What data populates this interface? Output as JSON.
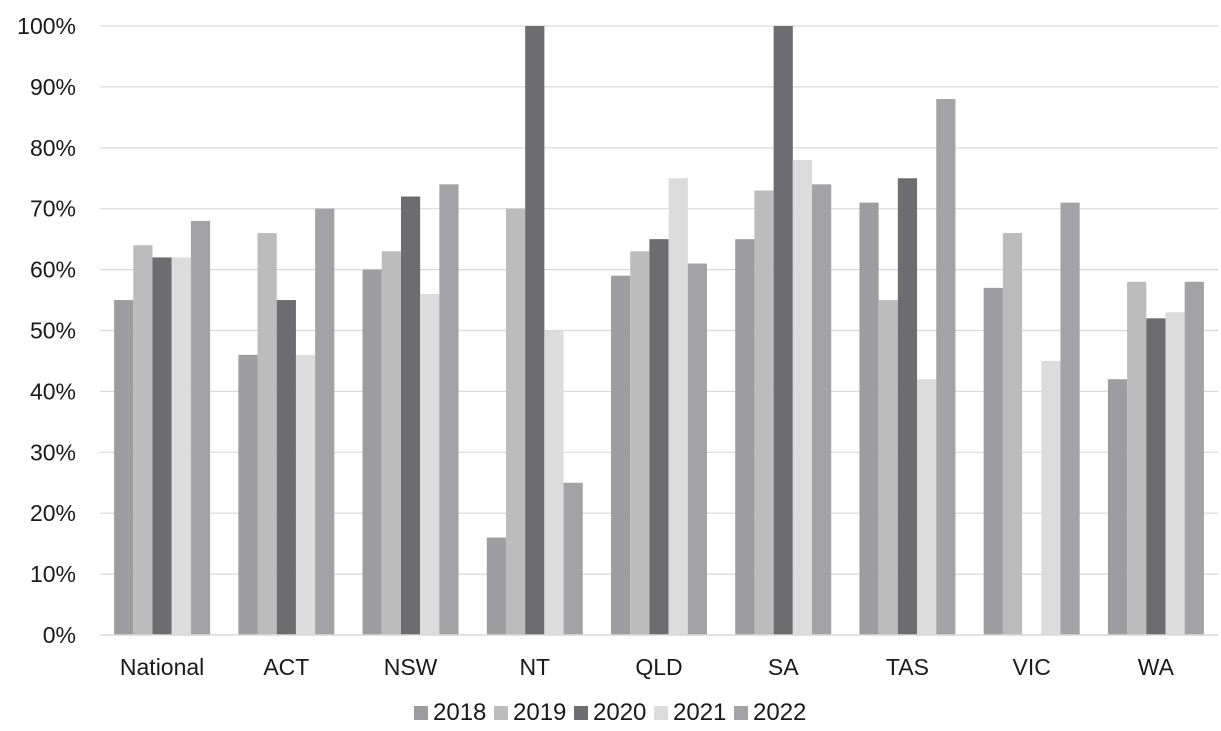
{
  "chart_data": {
    "type": "bar",
    "title": "",
    "xlabel": "",
    "ylabel": "",
    "ylim": [
      0,
      100
    ],
    "yticks": [
      0,
      10,
      20,
      30,
      40,
      50,
      60,
      70,
      80,
      90,
      100
    ],
    "y_tick_suffix": "%",
    "grid": "horizontal",
    "legend_position": "bottom",
    "categories": [
      "National",
      "ACT",
      "NSW",
      "NT",
      "QLD",
      "SA",
      "TAS",
      "VIC",
      "WA"
    ],
    "series": [
      {
        "name": "2018",
        "color": "#9d9d9f",
        "values": [
          55,
          46,
          60,
          16,
          59,
          65,
          71,
          57,
          42
        ]
      },
      {
        "name": "2019",
        "color": "#bcbcbd",
        "values": [
          64,
          66,
          63,
          70,
          63,
          73,
          55,
          66,
          58
        ]
      },
      {
        "name": "2020",
        "color": "#6d6d70",
        "values": [
          62,
          55,
          72,
          100,
          65,
          100,
          75,
          0,
          52
        ]
      },
      {
        "name": "2021",
        "color": "#dcdcdd",
        "values": [
          62,
          46,
          56,
          50,
          75,
          78,
          42,
          45,
          53
        ]
      },
      {
        "name": "2022",
        "color": "#a3a3a5",
        "values": [
          68,
          70,
          74,
          25,
          61,
          74,
          88,
          71,
          58
        ]
      }
    ]
  }
}
